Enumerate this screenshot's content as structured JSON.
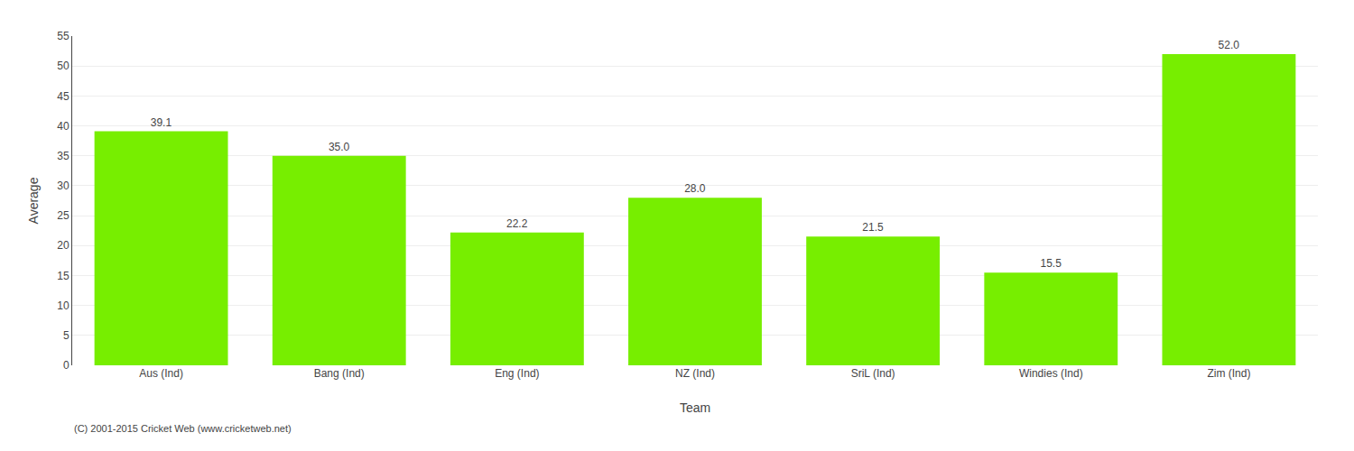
{
  "chart_data": {
    "type": "bar",
    "categories": [
      "Aus (Ind)",
      "Bang (Ind)",
      "Eng (Ind)",
      "NZ (Ind)",
      "SriL (Ind)",
      "Windies (Ind)",
      "Zim (Ind)"
    ],
    "values": [
      39.1,
      35.0,
      22.2,
      28.0,
      21.5,
      15.5,
      52.0
    ],
    "value_labels": [
      "39.1",
      "35.0",
      "22.2",
      "28.0",
      "21.5",
      "15.5",
      "52.0"
    ],
    "data_labels": true,
    "color": "#77ee00",
    "ylabel": "Average",
    "xlabel": "Team",
    "ylim": [
      0,
      55
    ],
    "yticks": [
      0,
      5,
      10,
      15,
      20,
      25,
      30,
      35,
      40,
      45,
      50,
      55
    ],
    "grid": true,
    "footnote": "(C) 2001-2015 Cricket Web (www.cricketweb.net)"
  }
}
